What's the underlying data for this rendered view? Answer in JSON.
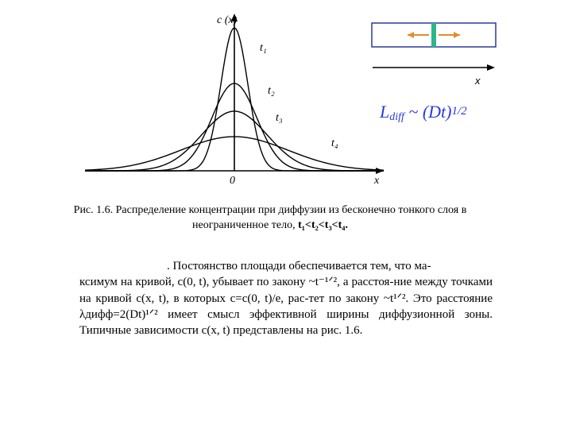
{
  "chart": {
    "type": "line-family-gaussians",
    "y_axis_label": "c (x)",
    "x_axis_label": "x",
    "origin_label": "0",
    "curve_labels": [
      "t₁",
      "t₂",
      "t₃",
      "t₄"
    ],
    "curves": [
      {
        "peak": 180,
        "spread": 24,
        "label_pos": {
          "x": 232,
          "y": 38
        }
      },
      {
        "peak": 110,
        "spread": 40,
        "label_pos": {
          "x": 242,
          "y": 92
        }
      },
      {
        "peak": 75,
        "spread": 58,
        "label_pos": {
          "x": 252,
          "y": 126
        }
      },
      {
        "peak": 43,
        "spread": 95,
        "label_pos": {
          "x": 322,
          "y": 158
        }
      }
    ],
    "stroke_color": "#000000",
    "stroke_width": 1.4,
    "axis_color": "#000000",
    "label_fontsize": 14,
    "y_axis_x": 200,
    "baseline_y": 200,
    "x_range": [
      12,
      388
    ]
  },
  "annotation_box": {
    "border_color": "#2a3a9a",
    "border_width": 1.5,
    "fill": "none",
    "inner_bar_fill": "#2fb58a",
    "arrow_color": "#e38b2a"
  },
  "x_arrow": {
    "stroke": "#000000",
    "label": "x"
  },
  "formula": {
    "L": "L",
    "subscript": "diff",
    "tilde": " ~ ",
    "rhs_open": "(Dt)",
    "exponent": "1/2",
    "main_color": "#2a3adf",
    "exp_color": "#2a3adf"
  },
  "caption": {
    "prefix": "Рис. 1.6. Распределение концентрации  при диффузии из бесконечно тонкого слоя в неограниченное тело,",
    "inequality": " t₁<t₂<t₃<t₄."
  },
  "paragraph": {
    "line1_indent": ". Постоянство площади обеспечивается тем, что ма-",
    "rest": "ксимум на кривой, c(0, t), убывает по закону ~t⁻¹ᐟ², а расстоя-ние между точками на кривой c(x, t), в которых c=c(0, t)/e, рас-тет по закону ~t¹ᐟ². Это расстояние λдифф=2(Dt)¹ᐟ² имеет смысл эффективной ширины диффузионной зоны. Типичные зависимости c(x, t) представлены на рис. 1.6."
  }
}
